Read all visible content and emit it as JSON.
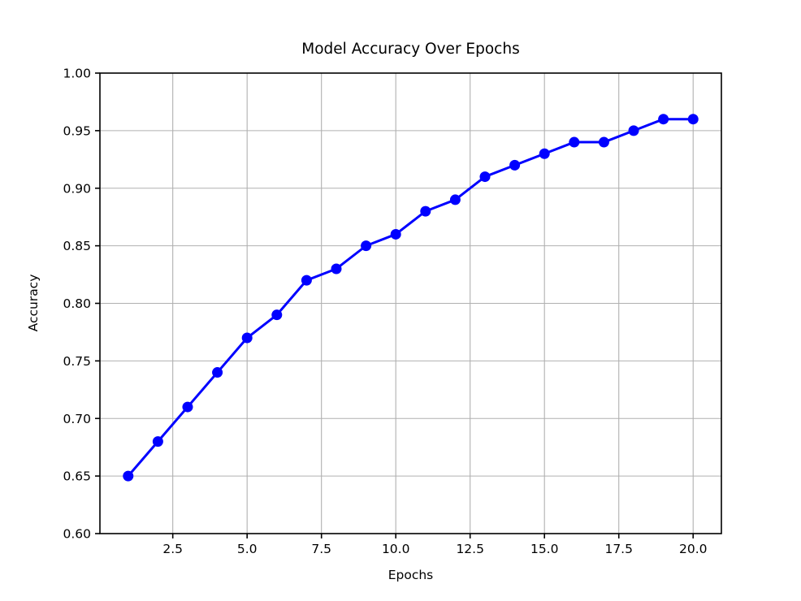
{
  "chart_data": {
    "type": "line",
    "title": "Model Accuracy Over Epochs",
    "xlabel": "Epochs",
    "ylabel": "Accuracy",
    "x": [
      1,
      2,
      3,
      4,
      5,
      6,
      7,
      8,
      9,
      10,
      11,
      12,
      13,
      14,
      15,
      16,
      17,
      18,
      19,
      20
    ],
    "series": [
      {
        "name": "accuracy",
        "values": [
          0.65,
          0.68,
          0.71,
          0.74,
          0.77,
          0.79,
          0.82,
          0.83,
          0.85,
          0.86,
          0.88,
          0.89,
          0.91,
          0.92,
          0.93,
          0.94,
          0.94,
          0.95,
          0.96,
          0.96
        ]
      }
    ],
    "xlim": [
      0.05,
      20.95
    ],
    "ylim": [
      0.6,
      1.0
    ],
    "x_ticks": {
      "values": [
        2.5,
        5.0,
        7.5,
        10.0,
        12.5,
        15.0,
        17.5,
        20.0
      ],
      "labels": [
        "2.5",
        "5.0",
        "7.5",
        "10.0",
        "12.5",
        "15.0",
        "17.5",
        "20.0"
      ]
    },
    "y_ticks": {
      "values": [
        0.6,
        0.65,
        0.7,
        0.75,
        0.8,
        0.85,
        0.9,
        0.95,
        1.0
      ],
      "labels": [
        "0.60",
        "0.65",
        "0.70",
        "0.75",
        "0.80",
        "0.85",
        "0.90",
        "0.95",
        "1.00"
      ]
    },
    "grid": true,
    "legend": "none",
    "marker": "circle",
    "colors": {
      "line": "#0000ff",
      "marker": "#0000ff",
      "grid": "#b0b0b0",
      "spine": "#000000",
      "text": "#000000",
      "background": "#ffffff"
    }
  }
}
